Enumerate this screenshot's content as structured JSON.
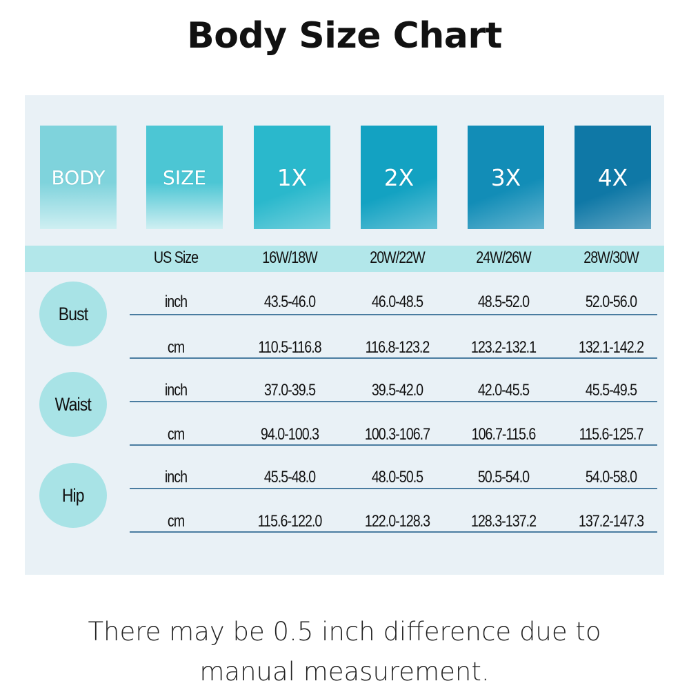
{
  "title": "Body Size Chart",
  "tiles": [
    {
      "label": "BODY",
      "color": "#7fd3dc"
    },
    {
      "label": "SIZE",
      "color": "#4cc6d4"
    },
    {
      "label": "1X",
      "color": "#2ab8cc"
    },
    {
      "label": "2X",
      "color": "#13a2c2"
    },
    {
      "label": "3X",
      "color": "#128db7"
    },
    {
      "label": "4X",
      "color": "#0f78a6"
    }
  ],
  "header": {
    "label": "US Size",
    "sizes": [
      "16W/18W",
      "20W/22W",
      "24W/26W",
      "28W/30W"
    ]
  },
  "measurements": [
    {
      "name": "Bust",
      "rows": [
        {
          "unit": "inch",
          "values": [
            "43.5-46.0",
            "46.0-48.5",
            "48.5-52.0",
            "52.0-56.0"
          ]
        },
        {
          "unit": "cm",
          "values": [
            "110.5-116.8",
            "116.8-123.2",
            "123.2-132.1",
            "132.1-142.2"
          ]
        }
      ]
    },
    {
      "name": "Waist",
      "rows": [
        {
          "unit": "inch",
          "values": [
            "37.0-39.5",
            "39.5-42.0",
            "42.0-45.5",
            "45.5-49.5"
          ]
        },
        {
          "unit": "cm",
          "values": [
            "94.0-100.3",
            "100.3-106.7",
            "106.7-115.6",
            "115.6-125.7"
          ]
        }
      ]
    },
    {
      "name": "Hip",
      "rows": [
        {
          "unit": "inch",
          "values": [
            "45.5-48.0",
            "48.0-50.5",
            "50.5-54.0",
            "54.0-58.0"
          ]
        },
        {
          "unit": "cm",
          "values": [
            "115.6-122.0",
            "122.0-128.3",
            "128.3-137.2",
            "137.2-147.3"
          ]
        }
      ]
    }
  ],
  "note": "There may be 0.5 inch difference due to manual measurement."
}
